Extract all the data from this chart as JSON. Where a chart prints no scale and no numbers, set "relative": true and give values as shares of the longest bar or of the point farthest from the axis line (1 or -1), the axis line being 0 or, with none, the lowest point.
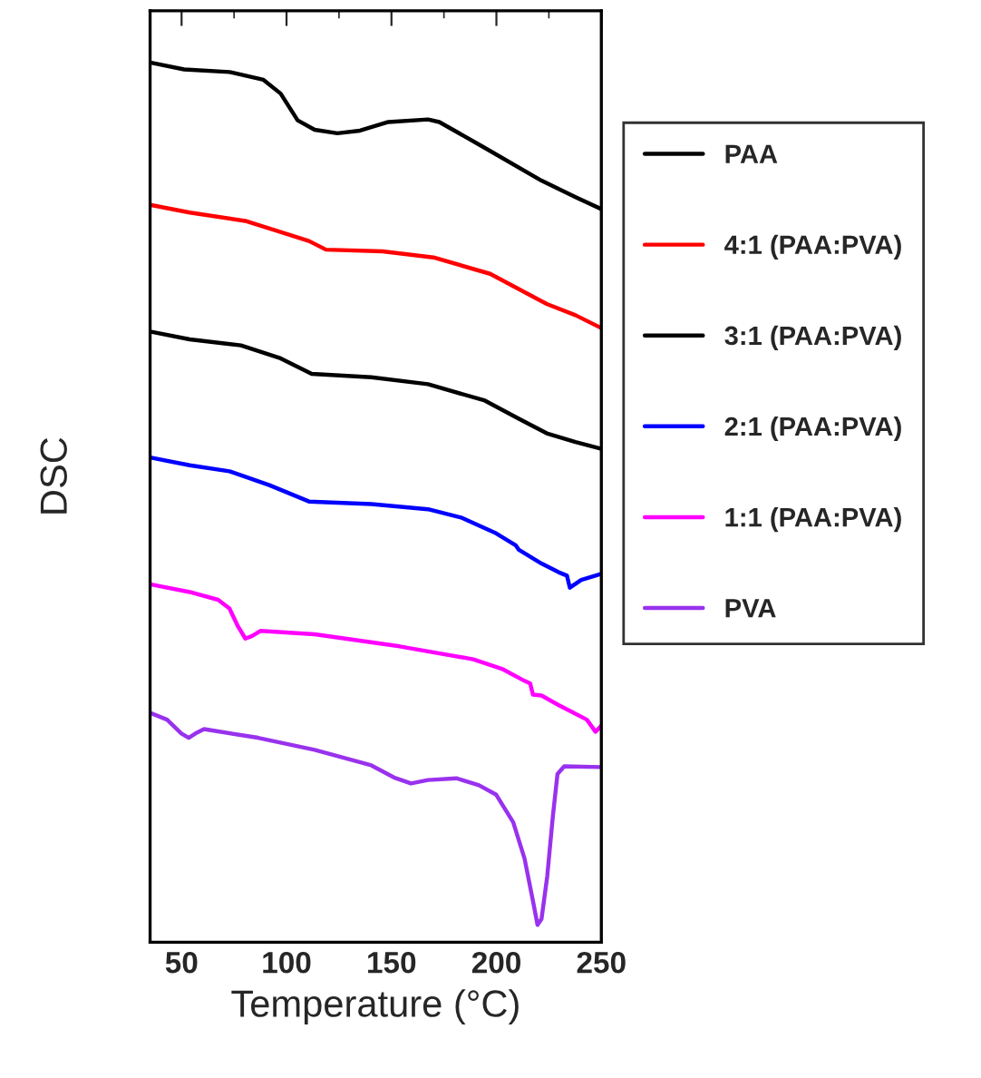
{
  "chart_data": {
    "type": "line",
    "relative": true,
    "xlabel": "Temperature (°C)",
    "ylabel": "DSC",
    "xlim": [
      35,
      250
    ],
    "xticks": [
      50,
      100,
      150,
      200,
      250
    ],
    "legend": "right",
    "tick_labels": "x",
    "grid": false,
    "line_style": "solid",
    "marker": "none",
    "series": [
      {
        "name": "PAA",
        "color": "#000000",
        "x": [
          35,
          51.2,
          72.8,
          89,
          97.2,
          105.3,
          113.4,
          124.2,
          135,
          148.5,
          167.4,
          172.8,
          194.5,
          221.5,
          237.7,
          250
        ],
        "values": [
          1.0,
          0.992,
          0.989,
          0.98,
          0.964,
          0.933,
          0.922,
          0.918,
          0.921,
          0.931,
          0.934,
          0.931,
          0.901,
          0.863,
          0.844,
          0.83
        ]
      },
      {
        "name": "4:1 (PAA:PVA)",
        "color": "#ff0000",
        "x": [
          35,
          53.9,
          81,
          110.7,
          118.8,
          145.8,
          170,
          197,
          224,
          237.7,
          250
        ],
        "values": [
          0.835,
          0.826,
          0.816,
          0.793,
          0.783,
          0.781,
          0.774,
          0.755,
          0.72,
          0.707,
          0.692
        ]
      },
      {
        "name": "3:1 (PAA:PVA)",
        "color": "#000000",
        "x": [
          35,
          53.9,
          78.3,
          97.2,
          112,
          140.4,
          167.4,
          194.5,
          210.7,
          224,
          237.7,
          250
        ],
        "values": [
          0.688,
          0.679,
          0.672,
          0.657,
          0.639,
          0.635,
          0.627,
          0.608,
          0.587,
          0.57,
          0.56,
          0.552
        ]
      },
      {
        "name": "2:1 (PAA:PVA)",
        "color": "#0000ff",
        "x": [
          35,
          53.9,
          72.8,
          91.8,
          110.7,
          140.4,
          167.4,
          183.6,
          199.9,
          209.3,
          210.7,
          221.5,
          229.6,
          233.6,
          235,
          240.4,
          250
        ],
        "values": [
          0.542,
          0.533,
          0.526,
          0.51,
          0.491,
          0.488,
          0.482,
          0.472,
          0.454,
          0.44,
          0.435,
          0.419,
          0.409,
          0.405,
          0.391,
          0.4,
          0.407
        ]
      },
      {
        "name": "1:1 (PAA:PVA)",
        "color": "#ff00ff",
        "x": [
          35,
          53.9,
          67.4,
          72.8,
          76.9,
          80.4,
          83.6,
          87.7,
          113.4,
          153.9,
          189,
          202.6,
          213.4,
          216.1,
          217.4,
          221.5,
          229.6,
          233.6,
          243.1,
          247.2,
          250
        ],
        "values": [
          0.395,
          0.386,
          0.377,
          0.367,
          0.346,
          0.332,
          0.335,
          0.341,
          0.337,
          0.323,
          0.308,
          0.297,
          0.283,
          0.28,
          0.267,
          0.266,
          0.255,
          0.25,
          0.238,
          0.224,
          0.231
        ]
      },
      {
        "name": "PVA",
        "color": "#9932ee",
        "x": [
          35,
          43.1,
          49.9,
          53.4,
          56.6,
          60.7,
          86.4,
          113.4,
          140.4,
          151.2,
          159.3,
          167.4,
          180.9,
          191.7,
          199.9,
          208,
          213.4,
          217.4,
          219.6,
          221.5,
          224.2,
          226.9,
          229.1,
          232.3,
          250
        ],
        "values": [
          0.246,
          0.238,
          0.222,
          0.217,
          0.222,
          0.227,
          0.217,
          0.203,
          0.185,
          0.171,
          0.164,
          0.168,
          0.17,
          0.162,
          0.151,
          0.119,
          0.077,
          0.028,
          0.0,
          0.007,
          0.056,
          0.126,
          0.175,
          0.184,
          0.183
        ]
      }
    ]
  }
}
